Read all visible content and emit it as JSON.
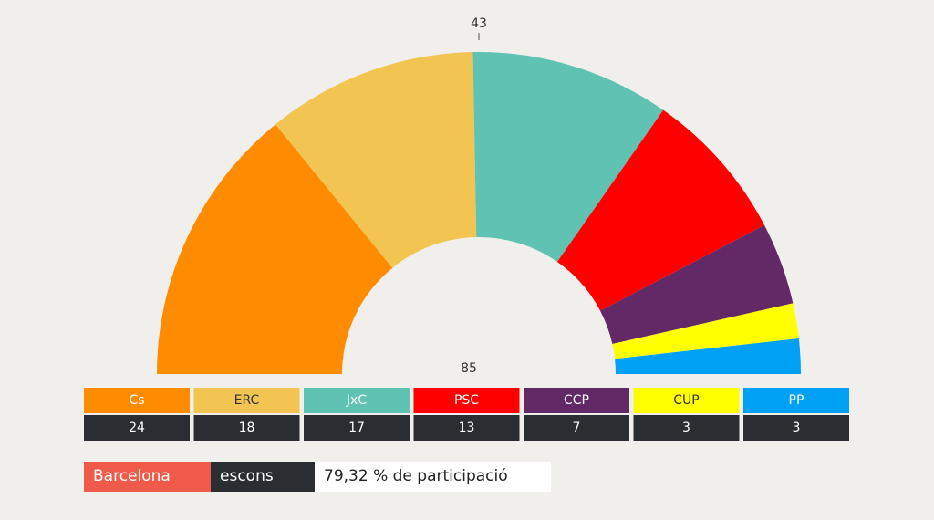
{
  "chart_data": {
    "type": "parliament",
    "categories": [
      "Cs",
      "ERC",
      "JxC",
      "PSC",
      "CCP",
      "CUP",
      "PP"
    ],
    "values": [
      24,
      18,
      17,
      13,
      7,
      3,
      3
    ],
    "colors": [
      "#ff8c00",
      "#f2c552",
      "#5fc2b3",
      "#ff0000",
      "#632866",
      "#ffff00",
      "#00a0f5"
    ],
    "total": 85,
    "majority": 43
  },
  "footer": {
    "region": "Barcelona",
    "unit": "escons",
    "participation": "79,32 % de participació"
  }
}
